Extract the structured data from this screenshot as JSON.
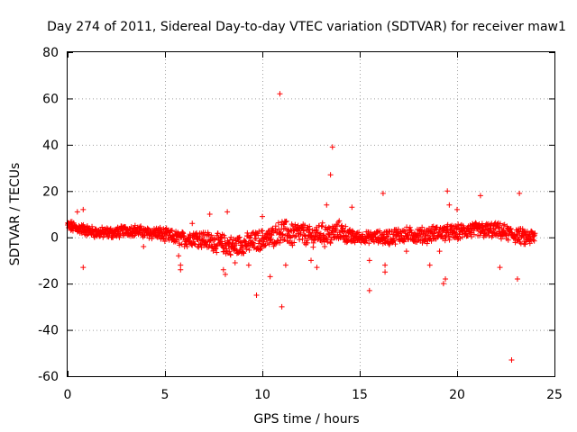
{
  "chart_data": {
    "type": "scatter",
    "title": "Day 274 of 2011, Sidereal Day-to-day VTEC variation (SDTVAR) for receiver maw1",
    "xlabel": "GPS time / hours",
    "ylabel": "SDTVAR / TECUs",
    "xlim": [
      0,
      25
    ],
    "ylim": [
      -60,
      80
    ],
    "x_ticks": [
      "0",
      "5",
      "10",
      "15",
      "20",
      "25"
    ],
    "y_ticks": [
      "-60",
      "-40",
      "-20",
      "0",
      "20",
      "40",
      "60",
      "80"
    ],
    "x_tick_values": [
      0,
      5,
      10,
      15,
      20,
      25
    ],
    "y_tick_values": [
      -60,
      -40,
      -20,
      0,
      20,
      40,
      60,
      80
    ],
    "grid": true,
    "marker": "+",
    "color": "#ff0000",
    "band": [
      [
        0.0,
        5,
        2
      ],
      [
        0.5,
        4,
        2
      ],
      [
        1.0,
        3,
        2
      ],
      [
        1.5,
        2,
        2
      ],
      [
        2.0,
        2,
        2
      ],
      [
        2.5,
        2,
        2
      ],
      [
        3.0,
        3,
        2
      ],
      [
        3.5,
        3,
        2
      ],
      [
        4.0,
        2,
        2
      ],
      [
        4.5,
        2,
        2.5
      ],
      [
        5.0,
        1,
        2.5
      ],
      [
        5.5,
        0,
        2.5
      ],
      [
        6.0,
        -1,
        3
      ],
      [
        6.5,
        0,
        3
      ],
      [
        7.0,
        -1,
        3.5
      ],
      [
        7.5,
        -2,
        3.5
      ],
      [
        8.0,
        -3,
        4
      ],
      [
        8.5,
        -4,
        4
      ],
      [
        9.0,
        -3,
        4
      ],
      [
        9.5,
        -2,
        4
      ],
      [
        10.0,
        -1,
        4
      ],
      [
        10.5,
        0,
        4
      ],
      [
        11.0,
        3,
        4.5
      ],
      [
        11.5,
        1,
        5
      ],
      [
        12.0,
        2,
        4
      ],
      [
        12.5,
        0,
        4
      ],
      [
        13.0,
        2,
        4
      ],
      [
        13.5,
        1,
        4
      ],
      [
        14.0,
        3,
        4
      ],
      [
        14.5,
        0,
        3
      ],
      [
        15.0,
        0,
        2
      ],
      [
        15.5,
        0,
        2
      ],
      [
        16.0,
        0,
        2.5
      ],
      [
        16.5,
        0,
        3
      ],
      [
        17.0,
        1,
        3
      ],
      [
        17.5,
        1,
        3
      ],
      [
        18.0,
        1,
        3
      ],
      [
        18.5,
        1,
        3
      ],
      [
        19.0,
        2,
        3
      ],
      [
        19.5,
        2,
        3
      ],
      [
        20.0,
        2,
        3
      ],
      [
        20.5,
        3,
        3
      ],
      [
        21.0,
        3,
        3
      ],
      [
        21.5,
        3,
        3
      ],
      [
        22.0,
        3,
        3
      ],
      [
        22.5,
        2,
        3
      ],
      [
        23.0,
        1,
        3
      ],
      [
        23.5,
        0,
        3
      ],
      [
        24.0,
        0,
        3
      ]
    ],
    "band_point_count": 1400,
    "outliers": [
      [
        0.8,
        -13
      ],
      [
        0.5,
        11
      ],
      [
        0.8,
        12
      ],
      [
        3.9,
        -4
      ],
      [
        5.7,
        -8
      ],
      [
        5.8,
        -12
      ],
      [
        5.8,
        -14
      ],
      [
        6.4,
        6
      ],
      [
        7.3,
        10
      ],
      [
        8.0,
        -14
      ],
      [
        8.1,
        -16
      ],
      [
        8.2,
        11
      ],
      [
        8.6,
        -11
      ],
      [
        9.3,
        -12
      ],
      [
        9.7,
        -25
      ],
      [
        10.0,
        9
      ],
      [
        10.4,
        -17
      ],
      [
        10.9,
        62
      ],
      [
        11.0,
        -30
      ],
      [
        11.2,
        -12
      ],
      [
        12.5,
        -10
      ],
      [
        12.8,
        -13
      ],
      [
        13.2,
        -4
      ],
      [
        13.3,
        14
      ],
      [
        13.5,
        27
      ],
      [
        13.6,
        39
      ],
      [
        14.6,
        13
      ],
      [
        15.5,
        -23
      ],
      [
        15.5,
        -10
      ],
      [
        16.2,
        19
      ],
      [
        16.3,
        -12
      ],
      [
        16.3,
        -15
      ],
      [
        17.4,
        -6
      ],
      [
        18.6,
        -12
      ],
      [
        19.1,
        -6
      ],
      [
        19.3,
        -20
      ],
      [
        19.4,
        -18
      ],
      [
        19.5,
        20
      ],
      [
        19.6,
        14
      ],
      [
        20.0,
        12
      ],
      [
        21.2,
        18
      ],
      [
        22.2,
        -13
      ],
      [
        22.8,
        -53
      ],
      [
        23.1,
        -18
      ],
      [
        23.2,
        19
      ],
      [
        23.5,
        -3
      ]
    ]
  }
}
